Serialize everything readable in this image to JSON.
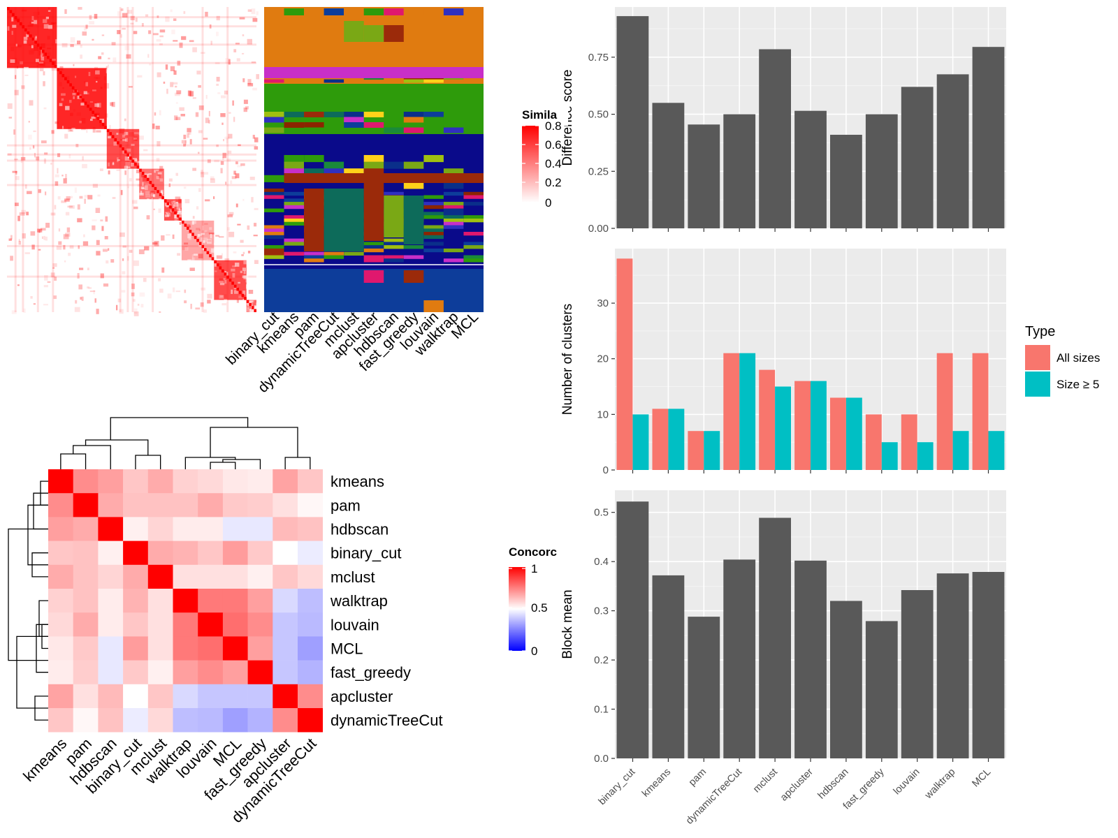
{
  "similarity_heatmap": {
    "legend_title": "Simila",
    "legend_ticks": [
      "0.8",
      "0.6",
      "0.4",
      "0.2",
      "0"
    ],
    "method_labels": [
      "binary_cut",
      "kmeans",
      "pam",
      "dynamicTreeCut",
      "mclust",
      "apcluster",
      "hdbscan",
      "fast_greedy",
      "louvain",
      "walktrap",
      "MCL"
    ]
  },
  "concordance_heatmap": {
    "legend_title": "Concorc",
    "legend_ticks": [
      "1",
      "0.5",
      "0"
    ],
    "colors": {
      "high": "#ff0000",
      "mid": "#ffffff",
      "low": "#0000ff"
    }
  },
  "chart_data": [
    {
      "type": "bar",
      "categories": [
        "binary_cut",
        "kmeans",
        "pam",
        "dynamicTreeCut",
        "mclust",
        "apcluster",
        "hdbscan",
        "fast_greedy",
        "louvain",
        "walktrap",
        "MCL"
      ],
      "values": [
        0.93,
        0.55,
        0.455,
        0.5,
        0.785,
        0.515,
        0.41,
        0.5,
        0.62,
        0.675,
        0.795
      ],
      "xlabel": "",
      "ylabel": "Difference score",
      "ylim": [
        0,
        0.97
      ],
      "yticks": [
        0,
        0.25,
        0.5,
        0.75
      ],
      "ytick_labels": [
        "0.00",
        "0.25",
        "0.50",
        "0.75"
      ],
      "show_x_labels": false,
      "bar_color": "#595959",
      "panel_background": "#ebebeb",
      "grid": true
    },
    {
      "type": "bar",
      "categories": [
        "binary_cut",
        "kmeans",
        "pam",
        "dynamicTreeCut",
        "mclust",
        "apcluster",
        "hdbscan",
        "fast_greedy",
        "louvain",
        "walktrap",
        "MCL"
      ],
      "series": [
        {
          "name": "All sizes",
          "values": [
            38,
            11,
            7,
            21,
            18,
            16,
            13,
            10,
            10,
            21,
            21
          ],
          "color": "#f8766d"
        },
        {
          "name": "Size ≥ 5",
          "values": [
            10,
            11,
            7,
            21,
            15,
            16,
            13,
            5,
            5,
            7,
            7
          ],
          "color": "#00bfc4"
        }
      ],
      "xlabel": "",
      "ylabel": "Number of clusters",
      "ylim": [
        0,
        39.8
      ],
      "yticks": [
        0,
        10,
        20,
        30
      ],
      "ytick_labels": [
        "0",
        "10",
        "20",
        "30"
      ],
      "show_x_labels": false,
      "legend_title": "Type",
      "legend_position": "right",
      "panel_background": "#ebebeb",
      "grid": true
    },
    {
      "type": "bar",
      "categories": [
        "binary_cut",
        "kmeans",
        "pam",
        "dynamicTreeCut",
        "mclust",
        "apcluster",
        "hdbscan",
        "fast_greedy",
        "louvain",
        "walktrap",
        "MCL"
      ],
      "values": [
        0.522,
        0.372,
        0.288,
        0.404,
        0.489,
        0.402,
        0.32,
        0.279,
        0.342,
        0.376,
        0.379
      ],
      "xlabel": "",
      "ylabel": "Block mean",
      "ylim": [
        0,
        0.545
      ],
      "yticks": [
        0,
        0.1,
        0.2,
        0.3,
        0.4,
        0.5
      ],
      "ytick_labels": [
        "0.0",
        "0.1",
        "0.2",
        "0.3",
        "0.4",
        "0.5"
      ],
      "show_x_labels": true,
      "bar_color": "#595959",
      "panel_background": "#ebebeb",
      "grid": true
    },
    {
      "type": "heatmap",
      "rows": [
        "kmeans",
        "pam",
        "hdbscan",
        "binary_cut",
        "mclust",
        "walktrap",
        "louvain",
        "MCL",
        "fast_greedy",
        "apcluster",
        "dynamicTreeCut"
      ],
      "columns": [
        "kmeans",
        "pam",
        "hdbscan",
        "binary_cut",
        "mclust",
        "walktrap",
        "louvain",
        "MCL",
        "fast_greedy",
        "apcluster",
        "dynamicTreeCut"
      ],
      "values": [
        [
          1.0,
          0.8,
          0.75,
          0.65,
          0.72,
          0.62,
          0.6,
          0.56,
          0.55,
          0.74,
          0.65
        ],
        [
          0.8,
          1.0,
          0.72,
          0.66,
          0.66,
          0.66,
          0.72,
          0.64,
          0.63,
          0.58,
          0.52
        ],
        [
          0.75,
          0.72,
          1.0,
          0.54,
          0.61,
          0.55,
          0.55,
          0.44,
          0.44,
          0.68,
          0.66
        ],
        [
          0.65,
          0.66,
          0.54,
          1.0,
          0.72,
          0.7,
          0.65,
          0.76,
          0.64,
          0.5,
          0.45
        ],
        [
          0.72,
          0.66,
          0.61,
          0.72,
          1.0,
          0.58,
          0.58,
          0.58,
          0.54,
          0.65,
          0.6
        ],
        [
          0.62,
          0.66,
          0.55,
          0.7,
          0.58,
          1.0,
          0.85,
          0.85,
          0.75,
          0.4,
          0.33
        ],
        [
          0.6,
          0.72,
          0.55,
          0.65,
          0.58,
          0.85,
          1.0,
          0.88,
          0.8,
          0.35,
          0.32
        ],
        [
          0.56,
          0.64,
          0.44,
          0.76,
          0.58,
          0.85,
          0.88,
          1.0,
          0.75,
          0.35,
          0.25
        ],
        [
          0.55,
          0.63,
          0.44,
          0.64,
          0.54,
          0.75,
          0.8,
          0.75,
          1.0,
          0.35,
          0.3
        ],
        [
          0.74,
          0.58,
          0.68,
          0.5,
          0.65,
          0.4,
          0.35,
          0.35,
          0.35,
          1.0,
          0.8
        ],
        [
          0.65,
          0.52,
          0.66,
          0.45,
          0.6,
          0.33,
          0.32,
          0.25,
          0.3,
          0.8,
          1.0
        ]
      ]
    }
  ]
}
